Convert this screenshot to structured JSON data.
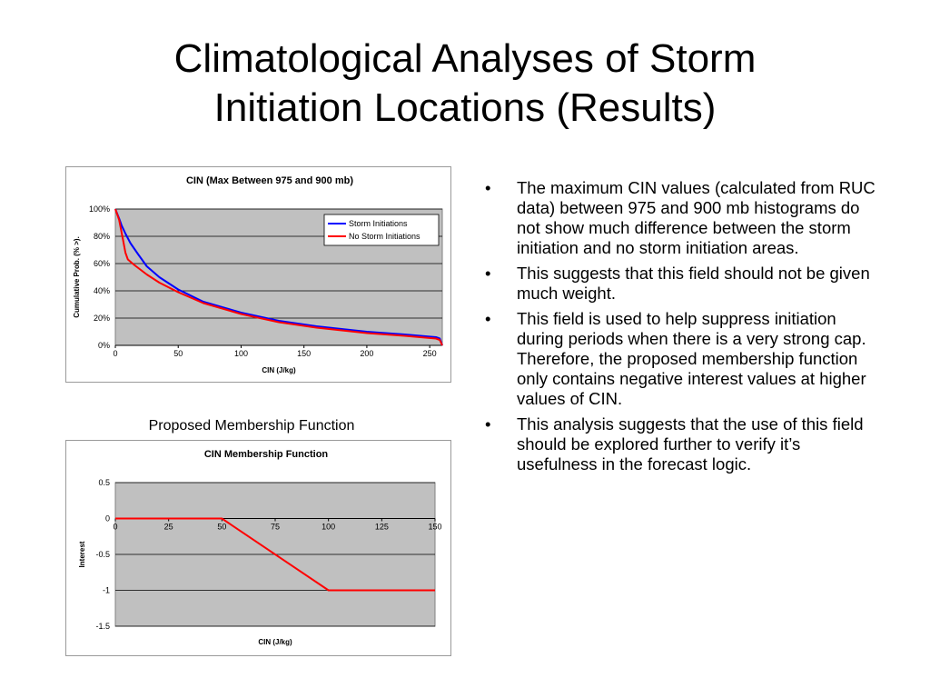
{
  "slide": {
    "title_line1": "Climatological Analyses of Storm",
    "title_line2": "Initiation Locations (Results)",
    "caption": "Proposed Membership Function",
    "bullet_glyph": "•",
    "bullets": [
      "The maximum CIN values (calculated from RUC data) between 975 and 900 mb histograms do not show much difference between the storm initiation and no storm initiation areas.",
      "This suggests that this field should not be given much weight.",
      "This field is used to help suppress initiation during periods when there is a very strong cap.  Therefore, the proposed membership function only contains negative interest values at higher values of CIN.",
      "This analysis suggests that the use of this field should be explored further to verify it’s usefulness in the forecast logic."
    ]
  },
  "chart_data": [
    {
      "type": "line",
      "title": "CIN (Max Between 975 and 900 mb)",
      "xlabel": "CIN (J/kg)",
      "ylabel": "Cumulative Prob. (% >).",
      "xlim": [
        0,
        260
      ],
      "ylim": [
        0,
        100
      ],
      "x_ticks": [
        0,
        50,
        100,
        150,
        200,
        250
      ],
      "x_tick_labels": [
        "0",
        "50",
        "100",
        "150",
        "200",
        "250"
      ],
      "y_ticks": [
        0,
        20,
        40,
        60,
        80,
        100
      ],
      "y_tick_labels": [
        "0%",
        "20%",
        "40%",
        "60%",
        "80%",
        "100%"
      ],
      "grid": true,
      "legend": "top-right",
      "plot_bg": "#c0c0c0",
      "series": [
        {
          "name": "Storm Initiations",
          "color": "#0000ff",
          "x": [
            0,
            3,
            5,
            8,
            12,
            18,
            25,
            35,
            50,
            70,
            100,
            130,
            160,
            200,
            230,
            255,
            258,
            260
          ],
          "y": [
            100,
            93,
            88,
            82,
            75,
            67,
            58,
            50,
            41,
            32,
            24,
            18,
            14,
            10,
            8,
            6,
            5,
            0
          ]
        },
        {
          "name": "No Storm Initiations",
          "color": "#ff0000",
          "x": [
            0,
            3,
            6,
            8,
            10,
            15,
            25,
            35,
            50,
            70,
            100,
            130,
            160,
            200,
            230,
            255,
            258,
            260
          ],
          "y": [
            100,
            92,
            78,
            68,
            63,
            59,
            52,
            46,
            39,
            31,
            23,
            17,
            13,
            9,
            7,
            5,
            4,
            0
          ]
        }
      ]
    },
    {
      "type": "line",
      "title": "CIN Membership Function",
      "xlabel": "CIN (J/kg)",
      "ylabel": "Interest",
      "xlim": [
        0,
        150
      ],
      "ylim": [
        -1.5,
        0.5
      ],
      "x_ticks": [
        0,
        25,
        50,
        75,
        100,
        125,
        150
      ],
      "x_tick_labels": [
        "0",
        "25",
        "50",
        "75",
        "100",
        "125",
        "150"
      ],
      "y_ticks": [
        0.5,
        0,
        -0.5,
        -1,
        -1.5
      ],
      "y_tick_labels": [
        "0.5",
        "0",
        "-0.5",
        "-1",
        "-1.5"
      ],
      "x_tick_labels_at_y": 0,
      "grid": true,
      "legend": "none",
      "plot_bg": "#c0c0c0",
      "series": [
        {
          "color": "#ff0000",
          "x": [
            0,
            50,
            100,
            150
          ],
          "y": [
            0,
            0,
            -1,
            -1
          ]
        }
      ]
    }
  ]
}
